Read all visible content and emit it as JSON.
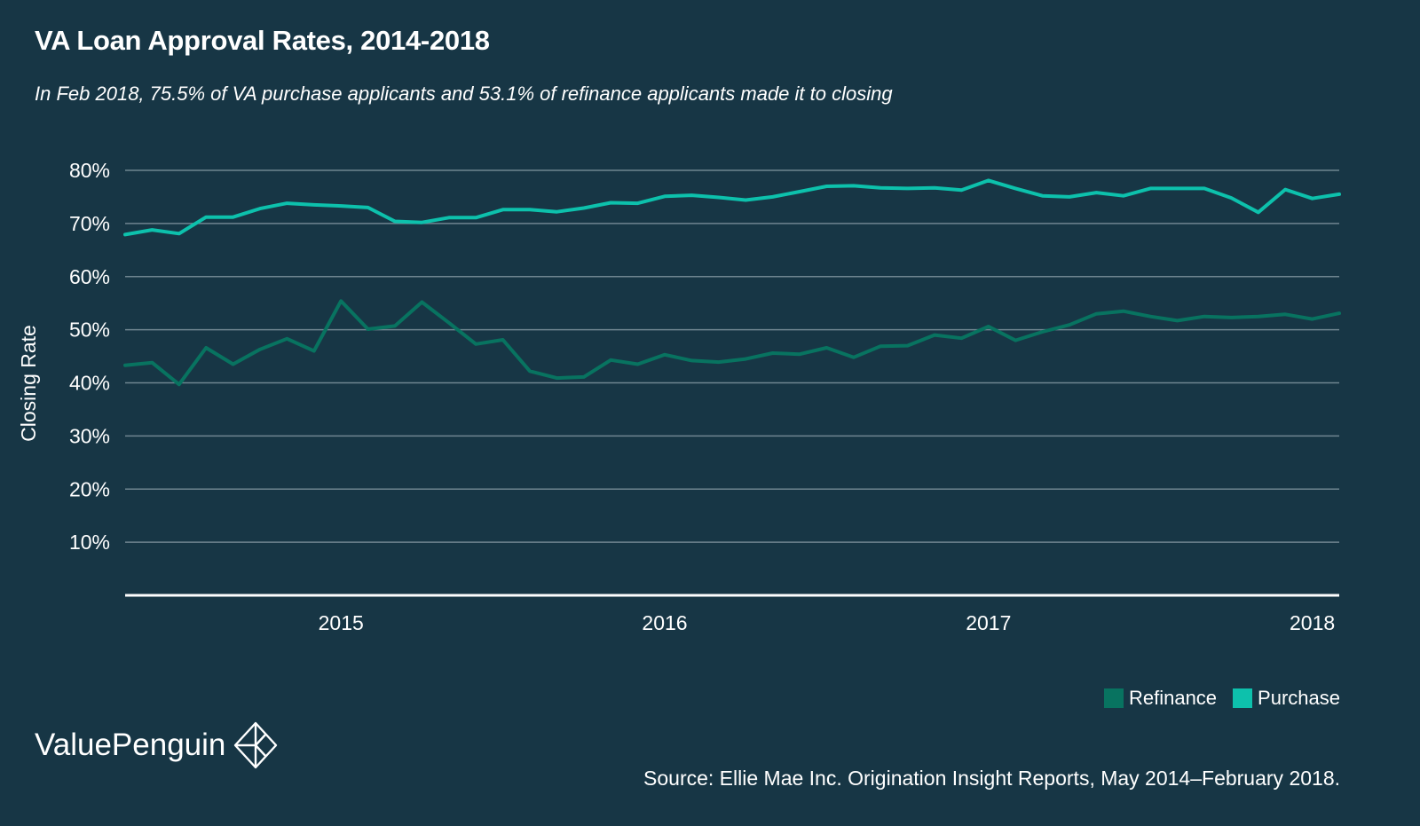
{
  "header": {
    "title": "VA Loan Approval Rates, 2014-2018",
    "subtitle": "In Feb 2018, 75.5% of VA purchase applicants and 53.1% of refinance applicants made it to closing"
  },
  "colors": {
    "background": "#173645",
    "refinance": "#087360",
    "purchase": "#0dc1ac",
    "grid": "#6f8590",
    "axis": "#ffffff",
    "text": "#ffffff"
  },
  "chart_data": {
    "type": "line",
    "ylabel": "Closing Rate",
    "ylim": [
      0,
      80
    ],
    "y_ticks": [
      "10%",
      "20%",
      "30%",
      "40%",
      "50%",
      "60%",
      "70%",
      "80%"
    ],
    "y_tick_values": [
      10,
      20,
      30,
      40,
      50,
      60,
      70,
      80
    ],
    "x_ticks": [
      "2015",
      "2016",
      "2017",
      "2018"
    ],
    "x_tick_values": [
      "2015-01",
      "2016-01",
      "2017-01",
      "2018-01"
    ],
    "x": [
      "2014-05",
      "2014-06",
      "2014-07",
      "2014-08",
      "2014-09",
      "2014-10",
      "2014-11",
      "2014-12",
      "2015-01",
      "2015-02",
      "2015-03",
      "2015-04",
      "2015-05",
      "2015-06",
      "2015-07",
      "2015-08",
      "2015-09",
      "2015-10",
      "2015-11",
      "2015-12",
      "2016-01",
      "2016-02",
      "2016-03",
      "2016-04",
      "2016-05",
      "2016-06",
      "2016-07",
      "2016-08",
      "2016-09",
      "2016-10",
      "2016-11",
      "2016-12",
      "2017-01",
      "2017-02",
      "2017-03",
      "2017-04",
      "2017-05",
      "2017-06",
      "2017-07",
      "2017-08",
      "2017-09",
      "2017-10",
      "2017-11",
      "2017-12",
      "2018-01",
      "2018-02"
    ],
    "series": [
      {
        "name": "Refinance",
        "values": [
          43.3,
          43.8,
          39.7,
          46.6,
          43.5,
          46.3,
          48.3,
          46.0,
          55.4,
          50.1,
          50.7,
          55.2,
          51.3,
          47.3,
          48.1,
          42.2,
          40.9,
          41.1,
          44.3,
          43.5,
          45.3,
          44.2,
          43.9,
          44.5,
          45.6,
          45.4,
          46.6,
          44.8,
          46.9,
          47.0,
          49.0,
          48.4,
          50.6,
          48.0,
          49.6,
          50.9,
          53.0,
          53.5,
          52.5,
          51.7,
          52.5,
          52.3,
          52.5,
          52.9,
          52.0,
          53.1
        ]
      },
      {
        "name": "Purchase",
        "values": [
          67.9,
          68.8,
          68.1,
          71.2,
          71.2,
          72.8,
          73.8,
          73.5,
          73.3,
          73.0,
          70.4,
          70.2,
          71.1,
          71.1,
          72.6,
          72.6,
          72.2,
          72.9,
          73.9,
          73.8,
          75.1,
          75.3,
          74.9,
          74.4,
          75.0,
          76.0,
          77.0,
          77.1,
          76.7,
          76.6,
          76.7,
          76.3,
          78.1,
          76.6,
          75.2,
          75.0,
          75.8,
          75.2,
          76.6,
          76.6,
          76.6,
          74.8,
          72.1,
          76.4,
          74.7,
          75.5
        ]
      }
    ],
    "legend": [
      "Refinance",
      "Purchase"
    ],
    "legend_position": "bottom-right",
    "grid": true
  },
  "footer": {
    "brand": "ValuePenguin",
    "source": "Source: Ellie Mae Inc. Origination Insight Reports, May 2014–February 2018."
  }
}
